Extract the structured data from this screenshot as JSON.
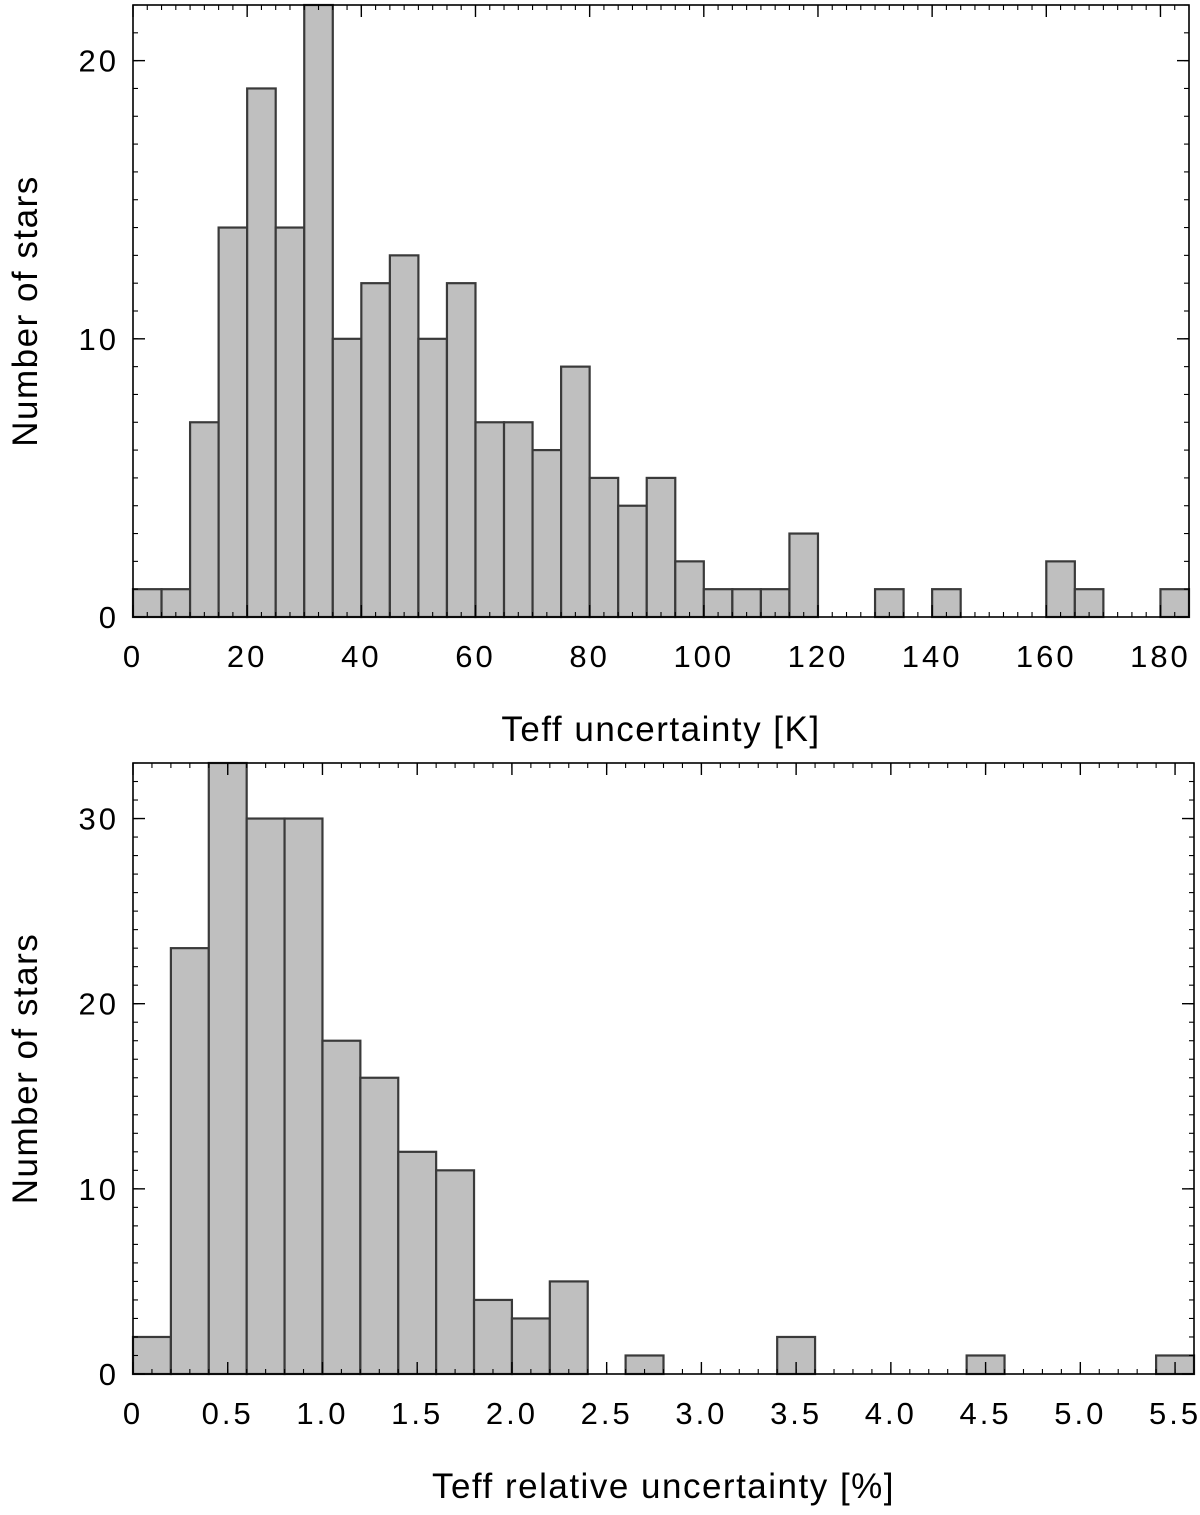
{
  "chart_data": [
    {
      "type": "bar",
      "title": "",
      "xlabel": "Teff uncertainty [K]",
      "ylabel": "Number of stars",
      "xlim": [
        0,
        185
      ],
      "ylim": [
        0,
        22
      ],
      "bin_width": 5,
      "x": [
        0,
        5,
        10,
        15,
        20,
        25,
        30,
        35,
        40,
        45,
        50,
        55,
        60,
        65,
        70,
        75,
        80,
        85,
        90,
        95,
        100,
        105,
        110,
        115,
        130,
        140,
        160,
        165,
        180
      ],
      "values": [
        1,
        1,
        7,
        14,
        19,
        14,
        22,
        10,
        12,
        13,
        10,
        12,
        7,
        7,
        6,
        9,
        5,
        4,
        5,
        2,
        1,
        1,
        1,
        3,
        1,
        1,
        2,
        1,
        1
      ],
      "xticks": [
        0,
        20,
        40,
        60,
        80,
        100,
        120,
        140,
        160,
        180
      ],
      "xtick_labels": [
        "0",
        "20",
        "40",
        "60",
        "80",
        "100",
        "120",
        "140",
        "160",
        "180"
      ],
      "yticks": [
        0,
        10,
        20
      ],
      "ytick_labels": [
        "0",
        "10",
        "20"
      ],
      "grid": false
    },
    {
      "type": "bar",
      "title": "",
      "xlabel": "Teff relative uncertainty [%]",
      "ylabel": "Number of stars",
      "xlim": [
        0,
        5.6
      ],
      "ylim": [
        0,
        33
      ],
      "bin_width": 0.2,
      "x": [
        0.0,
        0.2,
        0.4,
        0.6,
        0.8,
        1.0,
        1.2,
        1.4,
        1.6,
        1.8,
        2.0,
        2.2,
        2.6,
        3.4,
        4.4,
        5.4
      ],
      "values": [
        2,
        23,
        33,
        30,
        30,
        18,
        16,
        12,
        11,
        4,
        3,
        5,
        1,
        2,
        1,
        1
      ],
      "xticks": [
        0,
        0.5,
        1.0,
        1.5,
        2.0,
        2.5,
        3.0,
        3.5,
        4.0,
        4.5,
        5.0,
        5.5
      ],
      "xtick_labels": [
        "0",
        "0.5",
        "1.0",
        "1.5",
        "2.0",
        "2.5",
        "3.0",
        "3.5",
        "4.0",
        "4.5",
        "5.0",
        "5.5"
      ],
      "yticks": [
        0,
        10,
        20,
        30
      ],
      "ytick_labels": [
        "0",
        "10",
        "20",
        "30"
      ],
      "grid": false
    }
  ]
}
